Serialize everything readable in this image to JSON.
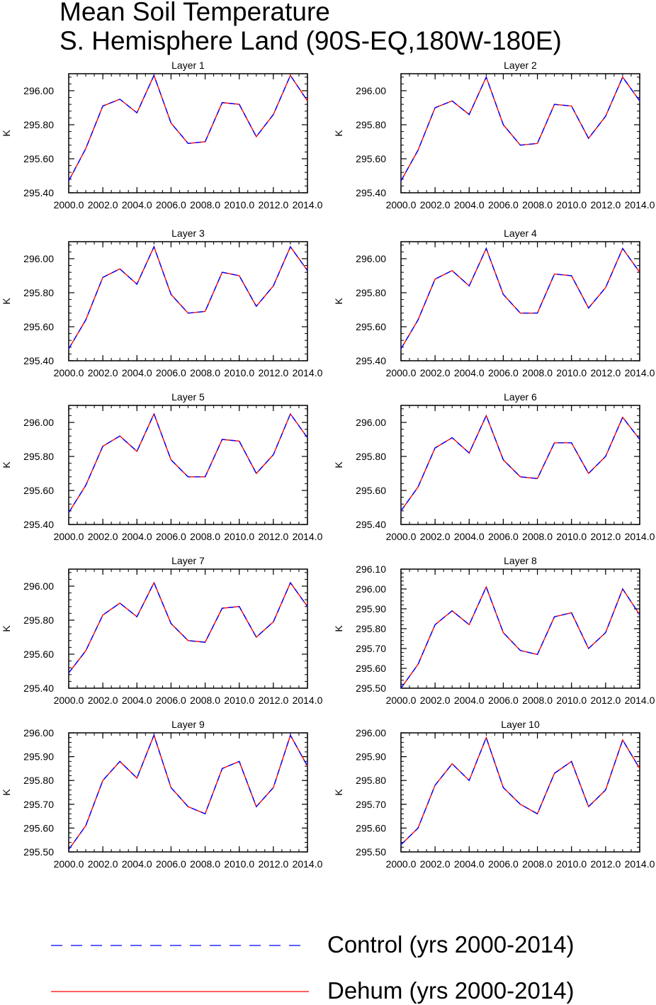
{
  "title": {
    "line1": "Mean Soil Temperature",
    "line2": "S. Hemisphere Land (90S-EQ,180W-180E)"
  },
  "colors": {
    "control": "#0000ff",
    "dehum": "#ff0000",
    "axis": "#000000"
  },
  "legend": {
    "control_label": "Control (yrs 2000-2014)",
    "dehum_label": "Dehum (yrs 2000-2014)"
  },
  "chart_data": [
    {
      "type": "line",
      "title": "Layer 1",
      "ylabel": "K",
      "xlim": [
        2000,
        2014
      ],
      "ylim": [
        295.4,
        296.1
      ],
      "yticks": [
        295.4,
        295.6,
        295.8,
        296.0
      ],
      "ytick_labels": [
        "295.40",
        "295.60",
        "295.80",
        "296.00"
      ],
      "xticks": [
        2000,
        2002,
        2004,
        2006,
        2008,
        2010,
        2012,
        2014
      ],
      "xtick_labels": [
        "2000.0",
        "2002.0",
        "2004.0",
        "2006.0",
        "2008.0",
        "2010.0",
        "2012.0",
        "2014.0"
      ],
      "x": [
        2000,
        2001,
        2002,
        2003,
        2004,
        2005,
        2006,
        2007,
        2008,
        2009,
        2010,
        2011,
        2012,
        2013,
        2014
      ],
      "series": [
        {
          "name": "Control (yrs 2000-2014)",
          "values": [
            295.47,
            295.66,
            295.91,
            295.95,
            295.87,
            296.09,
            295.81,
            295.69,
            295.7,
            295.93,
            295.92,
            295.73,
            295.86,
            296.09,
            295.94
          ]
        },
        {
          "name": "Dehum (yrs 2000-2014)",
          "values": [
            295.47,
            295.66,
            295.91,
            295.95,
            295.87,
            296.09,
            295.81,
            295.69,
            295.7,
            295.93,
            295.92,
            295.73,
            295.86,
            296.09,
            295.94
          ]
        }
      ]
    },
    {
      "type": "line",
      "title": "Layer 2",
      "ylabel": "K",
      "xlim": [
        2000,
        2014
      ],
      "ylim": [
        295.4,
        296.1
      ],
      "yticks": [
        295.4,
        295.6,
        295.8,
        296.0
      ],
      "ytick_labels": [
        "295.40",
        "295.60",
        "295.80",
        "296.00"
      ],
      "xticks": [
        2000,
        2002,
        2004,
        2006,
        2008,
        2010,
        2012,
        2014
      ],
      "xtick_labels": [
        "2000.0",
        "2002.0",
        "2004.0",
        "2006.0",
        "2008.0",
        "2010.0",
        "2012.0",
        "2014.0"
      ],
      "x": [
        2000,
        2001,
        2002,
        2003,
        2004,
        2005,
        2006,
        2007,
        2008,
        2009,
        2010,
        2011,
        2012,
        2013,
        2014
      ],
      "series": [
        {
          "name": "Control (yrs 2000-2014)",
          "values": [
            295.47,
            295.65,
            295.9,
            295.94,
            295.86,
            296.08,
            295.8,
            295.68,
            295.69,
            295.92,
            295.91,
            295.72,
            295.85,
            296.08,
            295.94
          ]
        },
        {
          "name": "Dehum (yrs 2000-2014)",
          "values": [
            295.47,
            295.65,
            295.9,
            295.94,
            295.86,
            296.08,
            295.8,
            295.68,
            295.69,
            295.92,
            295.91,
            295.72,
            295.85,
            296.08,
            295.94
          ]
        }
      ]
    },
    {
      "type": "line",
      "title": "Layer 3",
      "ylabel": "K",
      "xlim": [
        2000,
        2014
      ],
      "ylim": [
        295.4,
        296.1
      ],
      "yticks": [
        295.4,
        295.6,
        295.8,
        296.0
      ],
      "ytick_labels": [
        "295.40",
        "295.60",
        "295.80",
        "296.00"
      ],
      "xticks": [
        2000,
        2002,
        2004,
        2006,
        2008,
        2010,
        2012,
        2014
      ],
      "xtick_labels": [
        "2000.0",
        "2002.0",
        "2004.0",
        "2006.0",
        "2008.0",
        "2010.0",
        "2012.0",
        "2014.0"
      ],
      "x": [
        2000,
        2001,
        2002,
        2003,
        2004,
        2005,
        2006,
        2007,
        2008,
        2009,
        2010,
        2011,
        2012,
        2013,
        2014
      ],
      "series": [
        {
          "name": "Control (yrs 2000-2014)",
          "values": [
            295.47,
            295.64,
            295.89,
            295.94,
            295.85,
            296.07,
            295.79,
            295.68,
            295.69,
            295.92,
            295.9,
            295.72,
            295.84,
            296.07,
            295.93
          ]
        },
        {
          "name": "Dehum (yrs 2000-2014)",
          "values": [
            295.47,
            295.64,
            295.89,
            295.94,
            295.85,
            296.07,
            295.79,
            295.68,
            295.69,
            295.92,
            295.9,
            295.72,
            295.84,
            296.07,
            295.93
          ]
        }
      ]
    },
    {
      "type": "line",
      "title": "Layer 4",
      "ylabel": "K",
      "xlim": [
        2000,
        2014
      ],
      "ylim": [
        295.4,
        296.1
      ],
      "yticks": [
        295.4,
        295.6,
        295.8,
        296.0
      ],
      "ytick_labels": [
        "295.40",
        "295.60",
        "295.80",
        "296.00"
      ],
      "xticks": [
        2000,
        2002,
        2004,
        2006,
        2008,
        2010,
        2012,
        2014
      ],
      "xtick_labels": [
        "2000.0",
        "2002.0",
        "2004.0",
        "2006.0",
        "2008.0",
        "2010.0",
        "2012.0",
        "2014.0"
      ],
      "x": [
        2000,
        2001,
        2002,
        2003,
        2004,
        2005,
        2006,
        2007,
        2008,
        2009,
        2010,
        2011,
        2012,
        2013,
        2014
      ],
      "series": [
        {
          "name": "Control (yrs 2000-2014)",
          "values": [
            295.47,
            295.64,
            295.88,
            295.93,
            295.84,
            296.06,
            295.79,
            295.68,
            295.68,
            295.91,
            295.9,
            295.71,
            295.83,
            296.06,
            295.92
          ]
        },
        {
          "name": "Dehum (yrs 2000-2014)",
          "values": [
            295.47,
            295.64,
            295.88,
            295.93,
            295.84,
            296.06,
            295.79,
            295.68,
            295.68,
            295.91,
            295.9,
            295.71,
            295.83,
            296.06,
            295.92
          ]
        }
      ]
    },
    {
      "type": "line",
      "title": "Layer 5",
      "ylabel": "K",
      "xlim": [
        2000,
        2014
      ],
      "ylim": [
        295.4,
        296.1
      ],
      "yticks": [
        295.4,
        295.6,
        295.8,
        296.0
      ],
      "ytick_labels": [
        "295.40",
        "295.60",
        "295.80",
        "296.00"
      ],
      "xticks": [
        2000,
        2002,
        2004,
        2006,
        2008,
        2010,
        2012,
        2014
      ],
      "xtick_labels": [
        "2000.0",
        "2002.0",
        "2004.0",
        "2006.0",
        "2008.0",
        "2010.0",
        "2012.0",
        "2014.0"
      ],
      "x": [
        2000,
        2001,
        2002,
        2003,
        2004,
        2005,
        2006,
        2007,
        2008,
        2009,
        2010,
        2011,
        2012,
        2013,
        2014
      ],
      "series": [
        {
          "name": "Control (yrs 2000-2014)",
          "values": [
            295.47,
            295.63,
            295.86,
            295.92,
            295.83,
            296.05,
            295.78,
            295.68,
            295.68,
            295.9,
            295.89,
            295.7,
            295.81,
            296.05,
            295.91
          ]
        },
        {
          "name": "Dehum (yrs 2000-2014)",
          "values": [
            295.47,
            295.63,
            295.86,
            295.92,
            295.83,
            296.05,
            295.78,
            295.68,
            295.68,
            295.9,
            295.89,
            295.7,
            295.81,
            296.05,
            295.91
          ]
        }
      ]
    },
    {
      "type": "line",
      "title": "Layer 6",
      "ylabel": "K",
      "xlim": [
        2000,
        2014
      ],
      "ylim": [
        295.4,
        296.1
      ],
      "yticks": [
        295.4,
        295.6,
        295.8,
        296.0
      ],
      "ytick_labels": [
        "295.40",
        "295.60",
        "295.80",
        "296.00"
      ],
      "xticks": [
        2000,
        2002,
        2004,
        2006,
        2008,
        2010,
        2012,
        2014
      ],
      "xtick_labels": [
        "2000.0",
        "2002.0",
        "2004.0",
        "2006.0",
        "2008.0",
        "2010.0",
        "2012.0",
        "2014.0"
      ],
      "x": [
        2000,
        2001,
        2002,
        2003,
        2004,
        2005,
        2006,
        2007,
        2008,
        2009,
        2010,
        2011,
        2012,
        2013,
        2014
      ],
      "series": [
        {
          "name": "Control (yrs 2000-2014)",
          "values": [
            295.48,
            295.62,
            295.85,
            295.91,
            295.82,
            296.04,
            295.78,
            295.68,
            295.67,
            295.88,
            295.88,
            295.7,
            295.8,
            296.03,
            295.9
          ]
        },
        {
          "name": "Dehum (yrs 2000-2014)",
          "values": [
            295.48,
            295.62,
            295.85,
            295.91,
            295.82,
            296.04,
            295.78,
            295.68,
            295.67,
            295.88,
            295.88,
            295.7,
            295.8,
            296.03,
            295.9
          ]
        }
      ]
    },
    {
      "type": "line",
      "title": "Layer 7",
      "ylabel": "K",
      "xlim": [
        2000,
        2014
      ],
      "ylim": [
        295.4,
        296.1
      ],
      "yticks": [
        295.4,
        295.6,
        295.8,
        296.0
      ],
      "ytick_labels": [
        "295.40",
        "295.60",
        "295.80",
        "296.00"
      ],
      "xticks": [
        2000,
        2002,
        2004,
        2006,
        2008,
        2010,
        2012,
        2014
      ],
      "xtick_labels": [
        "2000.0",
        "2002.0",
        "2004.0",
        "2006.0",
        "2008.0",
        "2010.0",
        "2012.0",
        "2014.0"
      ],
      "x": [
        2000,
        2001,
        2002,
        2003,
        2004,
        2005,
        2006,
        2007,
        2008,
        2009,
        2010,
        2011,
        2012,
        2013,
        2014
      ],
      "series": [
        {
          "name": "Control (yrs 2000-2014)",
          "values": [
            295.49,
            295.62,
            295.83,
            295.9,
            295.82,
            296.02,
            295.78,
            295.68,
            295.67,
            295.87,
            295.88,
            295.7,
            295.79,
            296.02,
            295.88
          ]
        },
        {
          "name": "Dehum (yrs 2000-2014)",
          "values": [
            295.49,
            295.62,
            295.83,
            295.9,
            295.82,
            296.02,
            295.78,
            295.68,
            295.67,
            295.87,
            295.88,
            295.7,
            295.79,
            296.02,
            295.88
          ]
        }
      ]
    },
    {
      "type": "line",
      "title": "Layer 8",
      "ylabel": "K",
      "xlim": [
        2000,
        2014
      ],
      "ylim": [
        295.5,
        296.1
      ],
      "yticks": [
        295.5,
        295.6,
        295.7,
        295.8,
        295.9,
        296.0,
        296.1
      ],
      "ytick_labels": [
        "295.50",
        "295.60",
        "295.70",
        "295.80",
        "295.90",
        "296.00",
        "296.10"
      ],
      "xticks": [
        2000,
        2002,
        2004,
        2006,
        2008,
        2010,
        2012,
        2014
      ],
      "xtick_labels": [
        "2000.0",
        "2002.0",
        "2004.0",
        "2006.0",
        "2008.0",
        "2010.0",
        "2012.0",
        "2014.0"
      ],
      "x": [
        2000,
        2001,
        2002,
        2003,
        2004,
        2005,
        2006,
        2007,
        2008,
        2009,
        2010,
        2011,
        2012,
        2013,
        2014
      ],
      "series": [
        {
          "name": "Control (yrs 2000-2014)",
          "values": [
            295.5,
            295.62,
            295.82,
            295.89,
            295.82,
            296.01,
            295.78,
            295.69,
            295.67,
            295.86,
            295.88,
            295.7,
            295.78,
            296.0,
            295.87
          ]
        },
        {
          "name": "Dehum (yrs 2000-2014)",
          "values": [
            295.5,
            295.62,
            295.82,
            295.89,
            295.82,
            296.01,
            295.78,
            295.69,
            295.67,
            295.86,
            295.88,
            295.7,
            295.78,
            296.0,
            295.87
          ]
        }
      ]
    },
    {
      "type": "line",
      "title": "Layer 9",
      "ylabel": "K",
      "xlim": [
        2000,
        2014
      ],
      "ylim": [
        295.5,
        296.0
      ],
      "yticks": [
        295.5,
        295.6,
        295.7,
        295.8,
        295.9,
        296.0
      ],
      "ytick_labels": [
        "295.50",
        "295.60",
        "295.70",
        "295.80",
        "295.90",
        "296.00"
      ],
      "xticks": [
        2000,
        2002,
        2004,
        2006,
        2008,
        2010,
        2012,
        2014
      ],
      "xtick_labels": [
        "2000.0",
        "2002.0",
        "2004.0",
        "2006.0",
        "2008.0",
        "2010.0",
        "2012.0",
        "2014.0"
      ],
      "x": [
        2000,
        2001,
        2002,
        2003,
        2004,
        2005,
        2006,
        2007,
        2008,
        2009,
        2010,
        2011,
        2012,
        2013,
        2014
      ],
      "series": [
        {
          "name": "Control (yrs 2000-2014)",
          "values": [
            295.51,
            295.61,
            295.8,
            295.88,
            295.81,
            295.99,
            295.77,
            295.69,
            295.66,
            295.85,
            295.88,
            295.69,
            295.77,
            295.99,
            295.86
          ]
        },
        {
          "name": "Dehum (yrs 2000-2014)",
          "values": [
            295.51,
            295.61,
            295.8,
            295.88,
            295.81,
            295.99,
            295.77,
            295.69,
            295.66,
            295.85,
            295.88,
            295.69,
            295.77,
            295.99,
            295.86
          ]
        }
      ]
    },
    {
      "type": "line",
      "title": "Layer 10",
      "ylabel": "K",
      "xlim": [
        2000,
        2014
      ],
      "ylim": [
        295.5,
        296.0
      ],
      "yticks": [
        295.5,
        295.6,
        295.7,
        295.8,
        295.9,
        296.0
      ],
      "ytick_labels": [
        "295.50",
        "295.60",
        "295.70",
        "295.80",
        "295.90",
        "296.00"
      ],
      "xticks": [
        2000,
        2002,
        2004,
        2006,
        2008,
        2010,
        2012,
        2014
      ],
      "xtick_labels": [
        "2000.0",
        "2002.0",
        "2004.0",
        "2006.0",
        "2008.0",
        "2010.0",
        "2012.0",
        "2014.0"
      ],
      "x": [
        2000,
        2001,
        2002,
        2003,
        2004,
        2005,
        2006,
        2007,
        2008,
        2009,
        2010,
        2011,
        2012,
        2013,
        2014
      ],
      "series": [
        {
          "name": "Control (yrs 2000-2014)",
          "values": [
            295.53,
            295.6,
            295.78,
            295.87,
            295.8,
            295.98,
            295.77,
            295.7,
            295.66,
            295.83,
            295.88,
            295.69,
            295.76,
            295.97,
            295.85
          ]
        },
        {
          "name": "Dehum (yrs 2000-2014)",
          "values": [
            295.53,
            295.6,
            295.78,
            295.87,
            295.8,
            295.98,
            295.77,
            295.7,
            295.66,
            295.83,
            295.88,
            295.69,
            295.76,
            295.97,
            295.85
          ]
        }
      ]
    }
  ]
}
